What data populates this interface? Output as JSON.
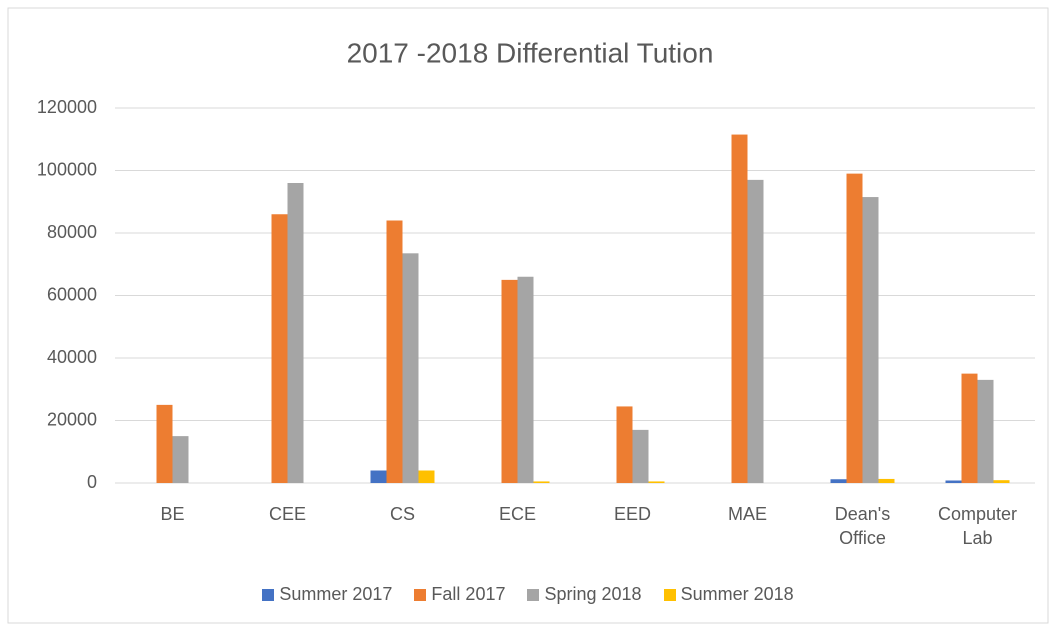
{
  "chart_data": {
    "type": "bar",
    "title": "2017 -2018 Differential Tution",
    "categories": [
      "BE",
      "CEE",
      "CS",
      "ECE",
      "EED",
      "MAE",
      "Dean's Office",
      "Computer Lab"
    ],
    "series": [
      {
        "name": "Summer 2017",
        "color": "#4472c4",
        "values": [
          0,
          0,
          4000,
          0,
          0,
          0,
          1200,
          800
        ]
      },
      {
        "name": "Fall 2017",
        "color": "#ed7d31",
        "values": [
          25000,
          86000,
          84000,
          65000,
          24500,
          111500,
          99000,
          35000
        ]
      },
      {
        "name": "Spring 2018",
        "color": "#a5a5a5",
        "values": [
          15000,
          96000,
          73500,
          66000,
          17000,
          97000,
          91500,
          33000
        ]
      },
      {
        "name": "Summer 2018",
        "color": "#ffc000",
        "values": [
          0,
          0,
          4000,
          500,
          500,
          0,
          1300,
          900
        ]
      }
    ],
    "ylim": [
      0,
      120000
    ],
    "yticks": [
      0,
      20000,
      40000,
      60000,
      80000,
      100000,
      120000
    ],
    "grid": true,
    "legend": "bottom"
  }
}
